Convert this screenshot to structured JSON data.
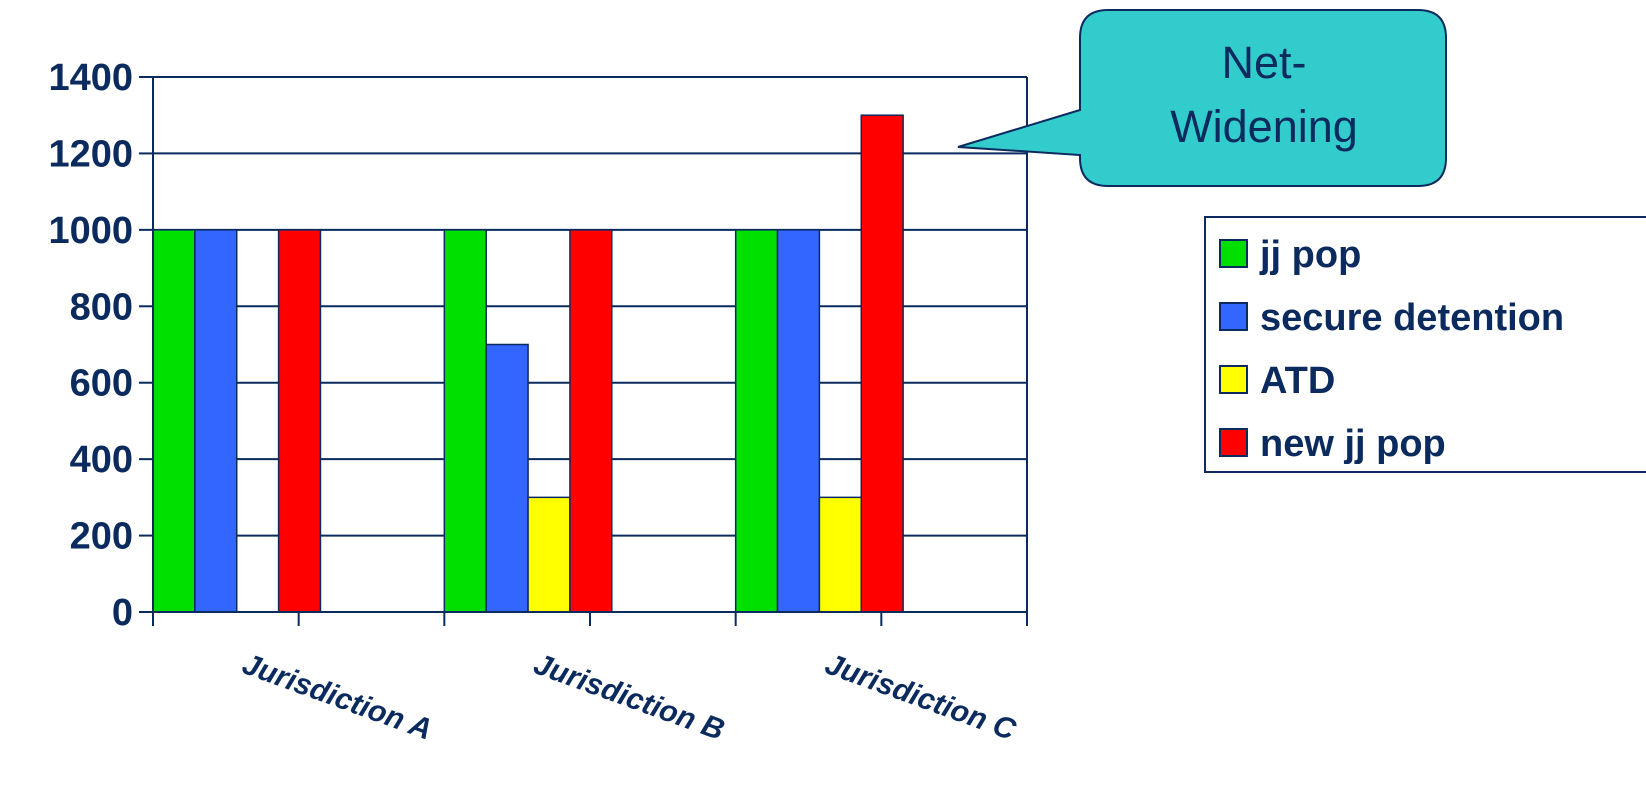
{
  "chart_data": {
    "type": "bar",
    "categories": [
      "Jurisdiction A",
      "Jurisdiction B",
      "Jurisdiction C"
    ],
    "series": [
      {
        "name": "jj pop",
        "values": [
          1000,
          1000,
          1000
        ],
        "color": "#00e000"
      },
      {
        "name": "secure detention",
        "values": [
          1000,
          700,
          1000
        ],
        "color": "#3366ff"
      },
      {
        "name": "ATD",
        "values": [
          0,
          300,
          300
        ],
        "color": "#ffff00"
      },
      {
        "name": "new jj pop",
        "values": [
          1000,
          1000,
          1300
        ],
        "color": "#ff0000"
      }
    ],
    "ylim": [
      0,
      1400
    ],
    "yticks": [
      0,
      200,
      400,
      600,
      800,
      1000,
      1200,
      1400
    ],
    "grid": true,
    "legend_position": "right",
    "annotation": {
      "text_lines": [
        "Net-",
        "Widening"
      ],
      "target": "Jurisdiction C / new jj pop"
    },
    "axis_color": "#0b2a5e",
    "callout_color": "#33cccc"
  }
}
